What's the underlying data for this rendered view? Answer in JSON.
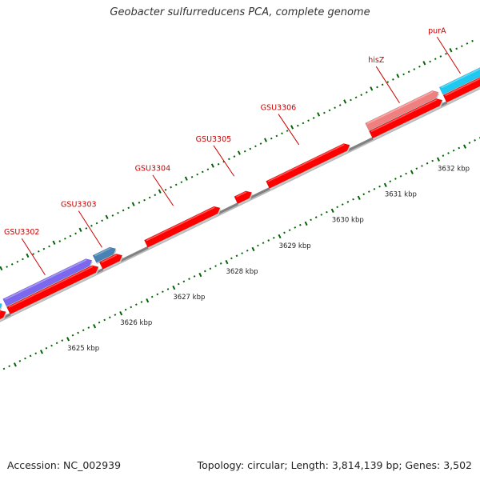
{
  "title": "Geobacter sulfurreducens PCA, complete genome",
  "footer": {
    "accession": "Accession: NC_002939",
    "topology": "Topology: circular; Length: 3,814,139 bp; Genes: 3,502"
  },
  "colors": {
    "backbone": "#808080",
    "forward_gene": "#ff0000",
    "reverse_gene_red": "#ff0000",
    "light_red": "#f08080",
    "light_blue": "#1ec8f0",
    "purple": "#7b68ee",
    "steel_blue": "#4682b4",
    "gene_label": "#cc0000",
    "tick": "#006400"
  },
  "scale": {
    "start_kbp": 3624.1,
    "end_kbp": 3633.3,
    "major_tick_labels": [
      "3625 kbp",
      "3626 kbp",
      "3627 kbp",
      "3628 kbp",
      "3629 kbp",
      "3630 kbp",
      "3631 kbp",
      "3632 kbp"
    ],
    "major_tick_values_kbp": [
      3625,
      3626,
      3627,
      3628,
      3629,
      3630,
      3631,
      3632
    ],
    "minor_tick_step_kbp": 0.1
  },
  "genes": [
    {
      "id": "gA",
      "label": "",
      "start_kbp": 3624.0,
      "end_kbp": 3624.25,
      "strand": 1,
      "track": "outer",
      "color": "#1ec8f0"
    },
    {
      "id": "gB",
      "label": "GSU3302",
      "start_kbp": 3624.3,
      "end_kbp": 3625.95,
      "strand": 1,
      "track": "outer",
      "color": "#7b68ee"
    },
    {
      "id": "gC",
      "label": "GSU3303",
      "start_kbp": 3626.0,
      "end_kbp": 3626.4,
      "strand": 1,
      "track": "outer",
      "color": "#4682b4"
    },
    {
      "id": "gD",
      "label": "hisZ",
      "start_kbp": 3631.15,
      "end_kbp": 3632.5,
      "strand": 1,
      "track": "outer",
      "color": "#f08080"
    },
    {
      "id": "gE",
      "label": "purA",
      "start_kbp": 3632.55,
      "end_kbp": 3633.4,
      "strand": 1,
      "track": "outer",
      "color": "#1ec8f0"
    },
    {
      "id": "gF",
      "label": "",
      "start_kbp": 3624.0,
      "end_kbp": 3624.25,
      "strand": 1,
      "track": "inner",
      "color": "#ff0000"
    },
    {
      "id": "gG",
      "label": "",
      "start_kbp": 3624.3,
      "end_kbp": 3626.0,
      "strand": 1,
      "track": "inner",
      "color": "#ff0000"
    },
    {
      "id": "gH",
      "label": "",
      "start_kbp": 3626.05,
      "end_kbp": 3626.45,
      "strand": 1,
      "track": "inner",
      "color": "#ff0000"
    },
    {
      "id": "gI",
      "label": "GSU3304",
      "start_kbp": 3626.9,
      "end_kbp": 3628.3,
      "strand": 1,
      "track": "inner",
      "color": "#ff0000"
    },
    {
      "id": "gJ",
      "label": "GSU3305",
      "start_kbp": 3628.6,
      "end_kbp": 3628.9,
      "strand": 1,
      "track": "inner",
      "color": "#ff0000"
    },
    {
      "id": "gK",
      "label": "GSU3306",
      "start_kbp": 3629.2,
      "end_kbp": 3630.75,
      "strand": 1,
      "track": "inner",
      "color": "#ff0000"
    },
    {
      "id": "gL",
      "label": "",
      "start_kbp": 3631.15,
      "end_kbp": 3632.5,
      "strand": 1,
      "track": "inner",
      "color": "#ff0000"
    },
    {
      "id": "gM",
      "label": "",
      "start_kbp": 3632.55,
      "end_kbp": 3633.4,
      "strand": 1,
      "track": "inner",
      "color": "#ff0000"
    }
  ]
}
